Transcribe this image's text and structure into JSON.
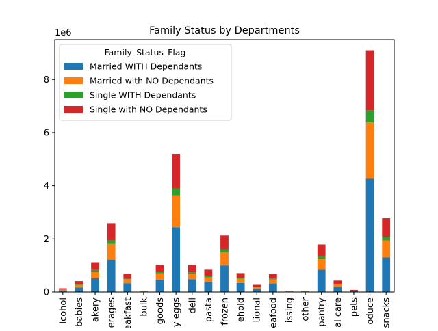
{
  "chart_data": {
    "type": "bar",
    "stacked": true,
    "title": "Family Status by Departments",
    "xlabel": "",
    "ylabel": "",
    "y_offset_label": "1e6",
    "ylim": [
      0,
      9.5
    ],
    "yticks": [
      0,
      2,
      4,
      6,
      8
    ],
    "ytick_labels": [
      "0",
      "2",
      "4",
      "6",
      "8"
    ],
    "legend": {
      "title": "Family_Status_Flag",
      "position": "upper-left"
    },
    "categories": [
      "alcohol",
      "babies",
      "bakery",
      "beverages",
      "breakfast",
      "bulk",
      "canned goods",
      "dairy eggs",
      "deli",
      "dry goods pasta",
      "frozen",
      "household",
      "international",
      "meat seafood",
      "missing",
      "other",
      "pantry",
      "personal care",
      "pets",
      "produce",
      "snacks"
    ],
    "visible_tick_labels": [
      "lcohol",
      "babies",
      "akery",
      "erages",
      "eakfast",
      "bulk",
      "goods",
      "y eggs",
      "deli",
      "pasta",
      "frozen",
      "ehold",
      "tional",
      "eafood",
      "issing",
      "other",
      "pantry",
      "al care",
      "pets",
      "oduce",
      "snacks"
    ],
    "series": [
      {
        "name": "Married WITH Dependants",
        "color": "#1f77b4",
        "values": [
          0.06,
          0.17,
          0.52,
          1.22,
          0.33,
          0.02,
          0.47,
          2.44,
          0.48,
          0.38,
          1.0,
          0.34,
          0.12,
          0.32,
          0.02,
          0.02,
          0.84,
          0.2,
          0.03,
          4.27,
          1.3
        ]
      },
      {
        "name": "Married with NO Dependants",
        "color": "#ff7f0e",
        "values": [
          0.03,
          0.1,
          0.25,
          0.59,
          0.15,
          0.01,
          0.23,
          1.2,
          0.21,
          0.17,
          0.5,
          0.16,
          0.06,
          0.15,
          0.01,
          0.01,
          0.41,
          0.09,
          0.02,
          2.11,
          0.64
        ]
      },
      {
        "name": "Single WITH Dependants",
        "color": "#2ca02c",
        "values": [
          0.01,
          0.03,
          0.06,
          0.13,
          0.04,
          0.0,
          0.05,
          0.26,
          0.05,
          0.05,
          0.11,
          0.04,
          0.01,
          0.04,
          0.0,
          0.0,
          0.1,
          0.02,
          0.0,
          0.46,
          0.14
        ]
      },
      {
        "name": "Single with NO Dependants",
        "color": "#d62728",
        "values": [
          0.04,
          0.11,
          0.29,
          0.65,
          0.17,
          0.01,
          0.27,
          1.3,
          0.28,
          0.24,
          0.52,
          0.17,
          0.08,
          0.17,
          0.02,
          0.01,
          0.44,
          0.12,
          0.03,
          2.26,
          0.7
        ]
      }
    ]
  }
}
